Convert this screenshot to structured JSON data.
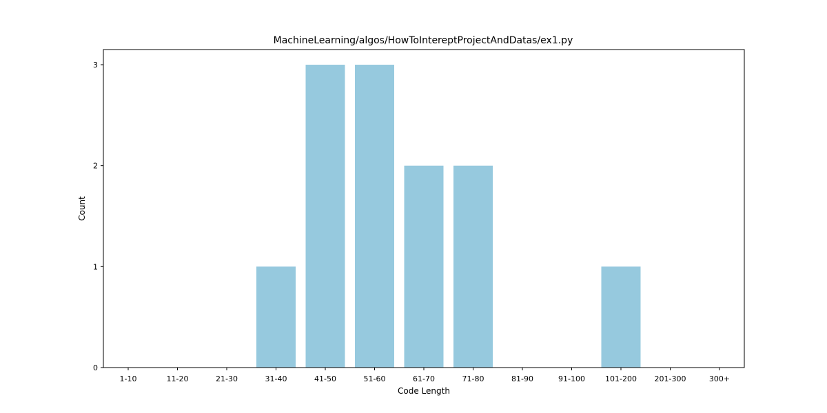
{
  "chart_data": {
    "type": "bar",
    "title": "MachineLearning/algos/HowToIntereptProjectAndDatas/ex1.py",
    "xlabel": "Code Length",
    "ylabel": "Count",
    "categories": [
      "1-10",
      "11-20",
      "21-30",
      "31-40",
      "41-50",
      "51-60",
      "61-70",
      "71-80",
      "81-90",
      "91-100",
      "101-200",
      "201-300",
      "300+"
    ],
    "values": [
      0,
      0,
      0,
      1,
      3,
      3,
      2,
      2,
      0,
      0,
      1,
      0,
      0
    ],
    "yticks": [
      0,
      1,
      2,
      3
    ],
    "ylim": [
      0,
      3.15
    ],
    "grid": false,
    "bar_color": "#96c9de"
  }
}
